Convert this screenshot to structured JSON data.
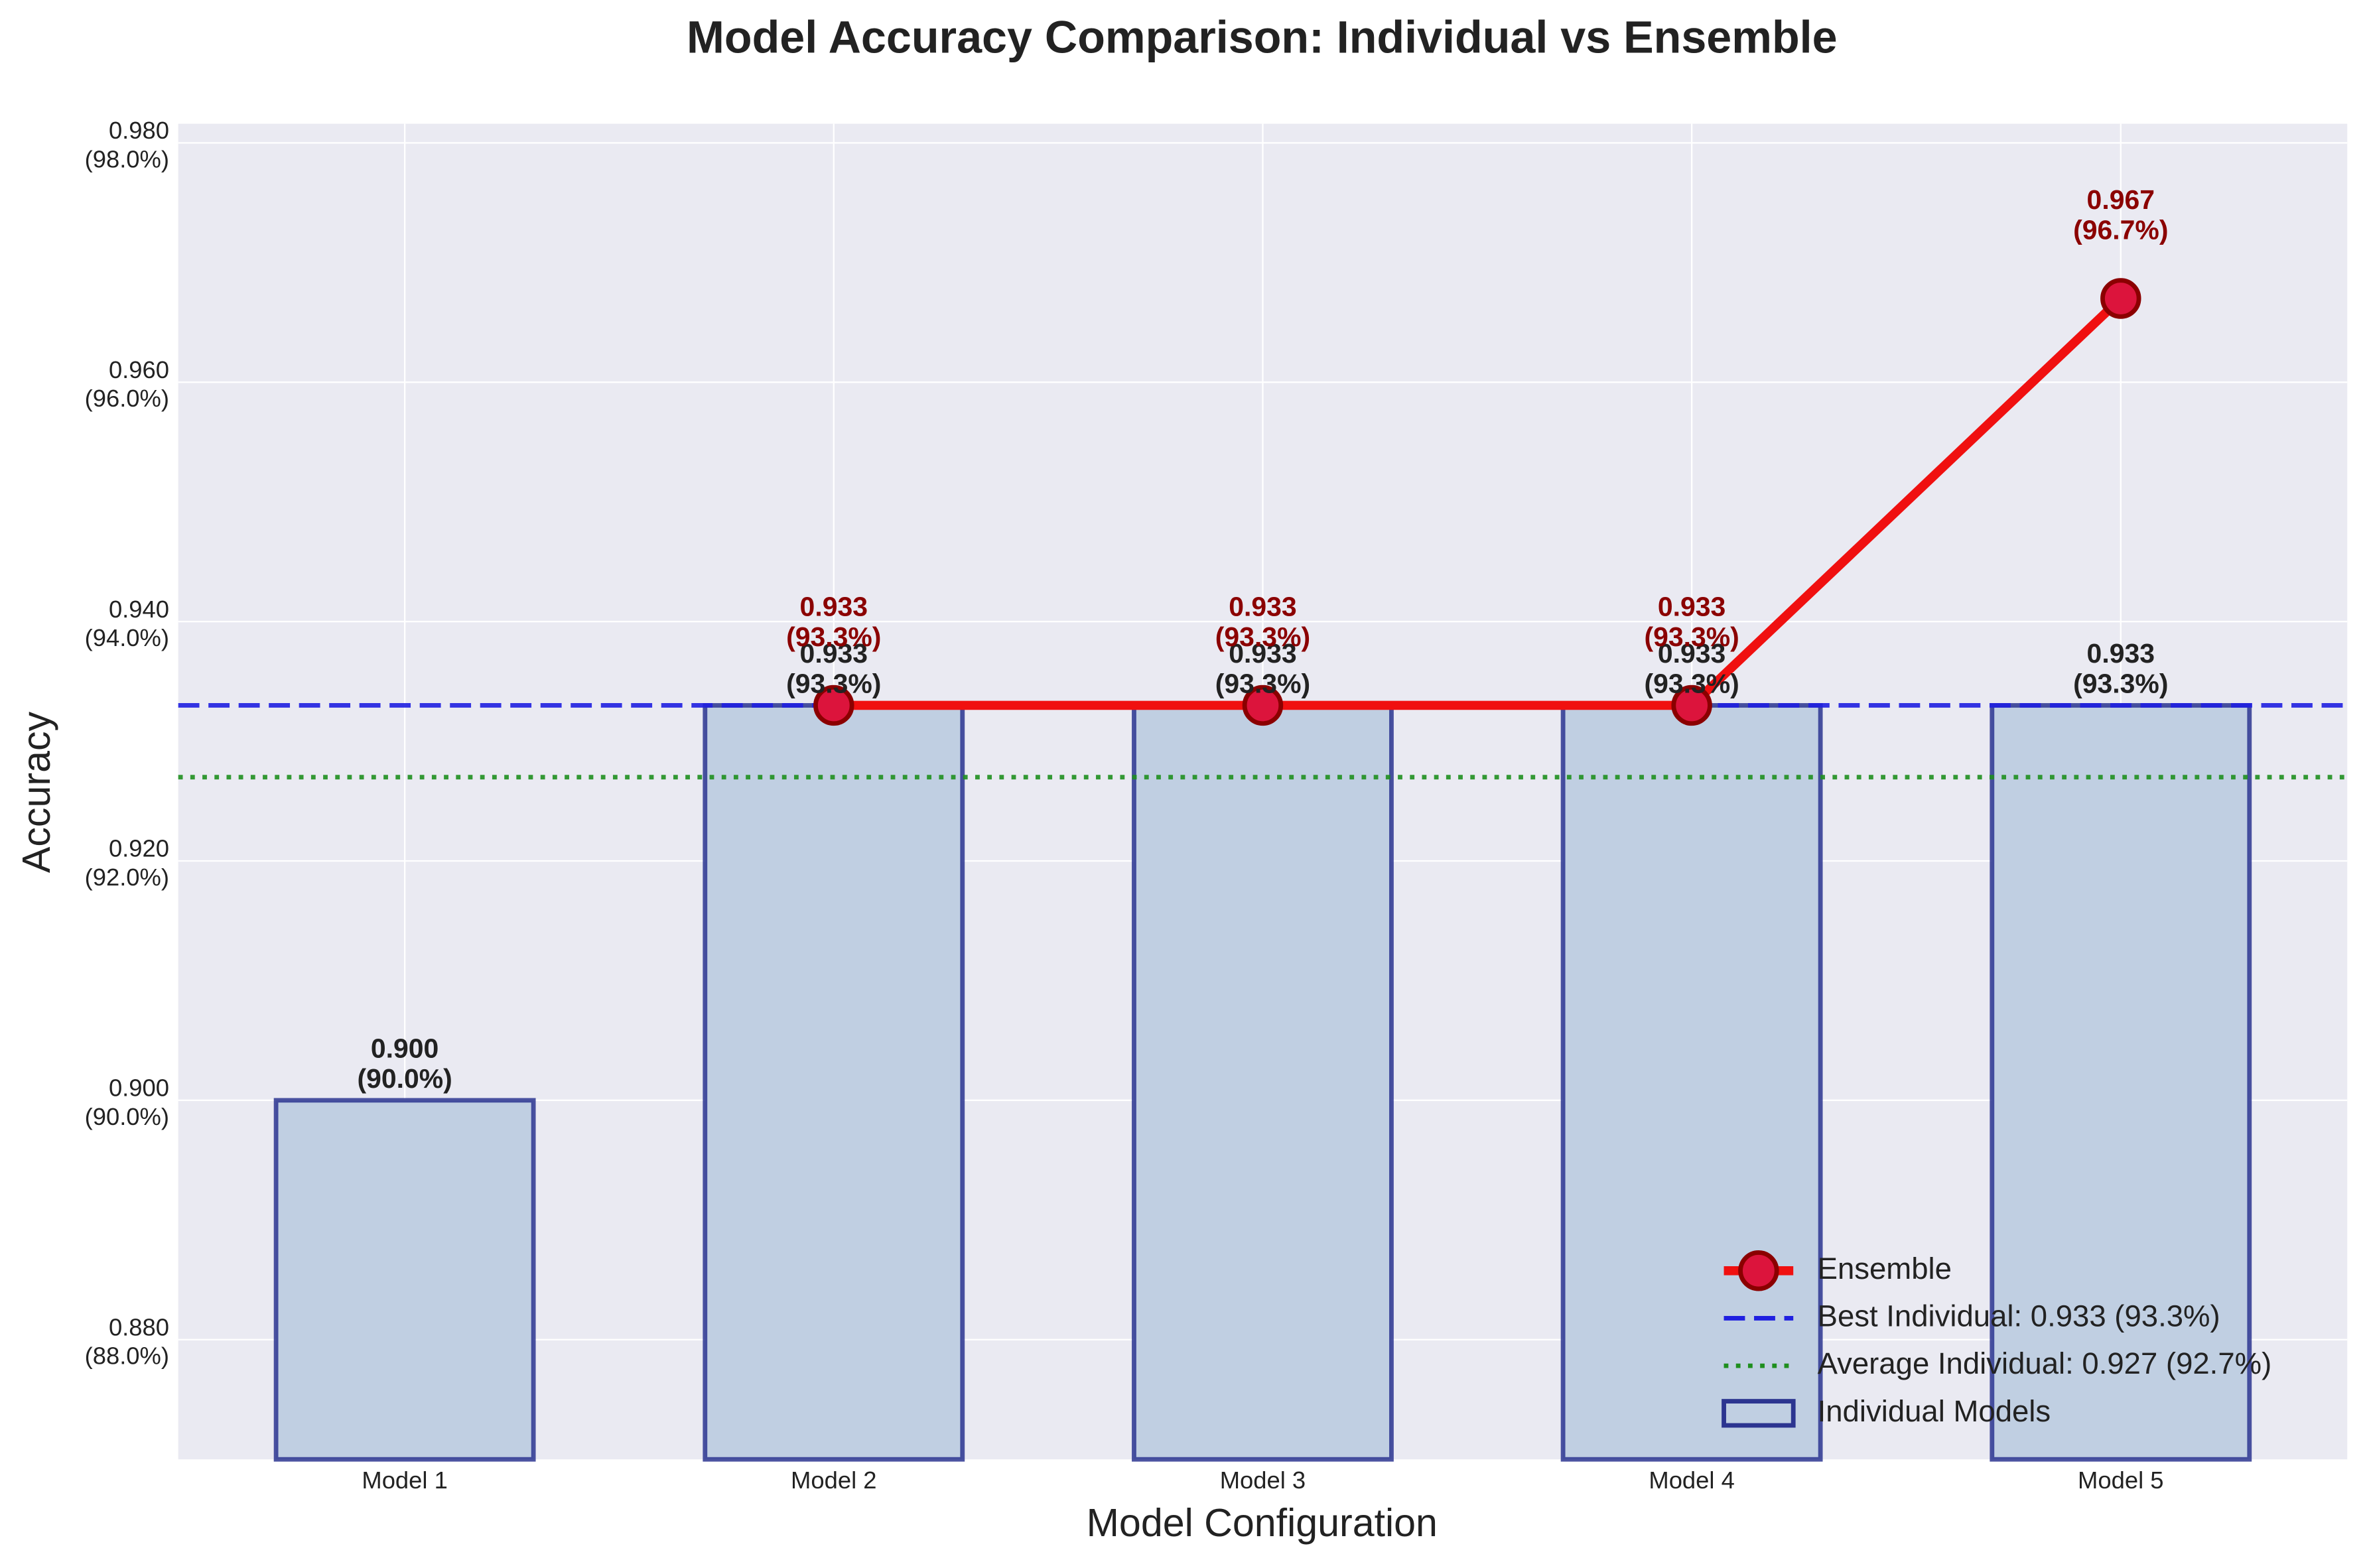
{
  "chart_data": {
    "type": "bar",
    "title": "Model Accuracy Comparison: Individual vs Ensemble",
    "xlabel": "Model Configuration",
    "ylabel": "Accuracy",
    "categories": [
      "Model 1",
      "Model 2",
      "Model 3",
      "Model 4",
      "Model 5"
    ],
    "series": [
      {
        "name": "Individual Models",
        "type": "bar",
        "color": "#c0cfe2",
        "edgecolor": "#2c3590",
        "values": [
          0.9,
          0.933,
          0.933,
          0.933,
          0.933
        ],
        "value_labels": [
          [
            "0.900",
            "(90.0%)"
          ],
          [
            "0.933",
            "(93.3%)"
          ],
          [
            "0.933",
            "(93.3%)"
          ],
          [
            "0.933",
            "(93.3%)"
          ],
          [
            "0.933",
            "(93.3%)"
          ]
        ]
      },
      {
        "name": "Ensemble",
        "type": "line",
        "color": "#f01010",
        "marker_color": "#dc143c",
        "edgecolor": "#8b0000",
        "values": [
          null,
          0.933,
          0.933,
          0.933,
          0.967
        ],
        "value_labels": [
          null,
          [
            "0.933",
            "(93.3%)"
          ],
          [
            "0.933",
            "(93.3%)"
          ],
          [
            "0.933",
            "(93.3%)"
          ],
          [
            "0.967",
            "(96.7%)"
          ]
        ]
      }
    ],
    "reference_lines": [
      {
        "name": "Best Individual: 0.933 (93.3%)",
        "value": 0.933,
        "color": "#1f1fe0",
        "style": "dashed"
      },
      {
        "name": "Average Individual: 0.927 (92.7%)",
        "value": 0.927,
        "color": "#1f8f1f",
        "style": "dotted"
      }
    ],
    "ylim": [
      0.87,
      0.9816
    ],
    "yticks": [
      {
        "value": 0.88,
        "label": [
          "0.880",
          "(88.0%)"
        ]
      },
      {
        "value": 0.9,
        "label": [
          "0.900",
          "(90.0%)"
        ]
      },
      {
        "value": 0.92,
        "label": [
          "0.920",
          "(92.0%)"
        ]
      },
      {
        "value": 0.94,
        "label": [
          "0.940",
          "(94.0%)"
        ]
      },
      {
        "value": 0.96,
        "label": [
          "0.960",
          "(96.0%)"
        ]
      },
      {
        "value": 0.98,
        "label": [
          "0.980",
          "(98.0%)"
        ]
      }
    ],
    "grid": true,
    "legend": "lower right"
  }
}
